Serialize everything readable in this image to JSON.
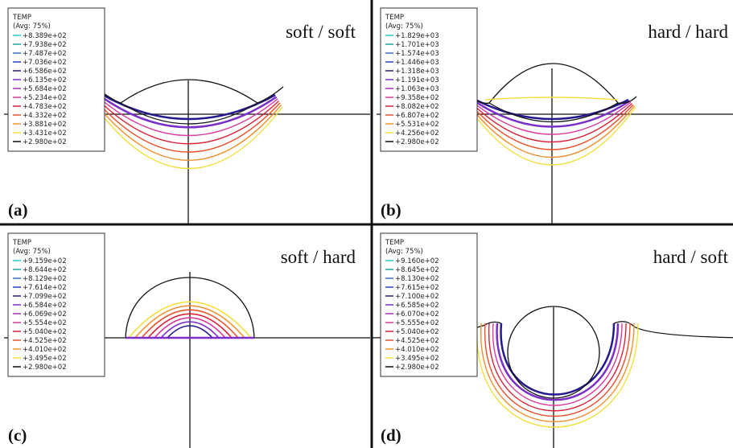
{
  "panels": [
    {
      "label": "(a)",
      "title": "soft / soft",
      "legend": {
        "heading": "TEMP",
        "subheading": "(Avg: 75%)",
        "entries": [
          "+8.389e+02",
          "+7.938e+02",
          "+7.487e+02",
          "+7.036e+02",
          "+6.586e+02",
          "+6.135e+02",
          "+5.684e+02",
          "+5.234e+02",
          "+4.783e+02",
          "+4.332e+02",
          "+3.881e+02",
          "+3.431e+02",
          "+2.980e+02"
        ]
      }
    },
    {
      "label": "(b)",
      "title": "hard / hard",
      "legend": {
        "heading": "TEMP",
        "subheading": "(Avg: 75%)",
        "entries": [
          "+1.829e+03",
          "+1.701e+03",
          "+1.574e+03",
          "+1.446e+03",
          "+1.318e+03",
          "+1.191e+03",
          "+1.063e+03",
          "+9.358e+02",
          "+8.082e+02",
          "+6.807e+02",
          "+5.531e+02",
          "+4.256e+02",
          "+2.980e+02"
        ]
      }
    },
    {
      "label": "(c)",
      "title": "soft / hard",
      "legend": {
        "heading": "TEMP",
        "subheading": "(Avg: 75%)",
        "entries": [
          "+9.159e+02",
          "+8.644e+02",
          "+8.129e+02",
          "+7.614e+02",
          "+7.099e+02",
          "+6.584e+02",
          "+6.069e+02",
          "+5.554e+02",
          "+5.040e+02",
          "+4.525e+02",
          "+4.010e+02",
          "+3.495e+02",
          "+2.980e+02"
        ]
      }
    },
    {
      "label": "(d)",
      "title": "hard / soft",
      "legend": {
        "heading": "TEMP",
        "subheading": "(Avg: 75%)",
        "entries": [
          "+9.160e+02",
          "+8.645e+02",
          "+8.130e+02",
          "+7.615e+02",
          "+7.100e+02",
          "+6.585e+02",
          "+6.070e+02",
          "+5.555e+02",
          "+5.040e+02",
          "+4.525e+02",
          "+4.010e+02",
          "+3.495e+02",
          "+2.980e+02"
        ]
      }
    }
  ]
}
